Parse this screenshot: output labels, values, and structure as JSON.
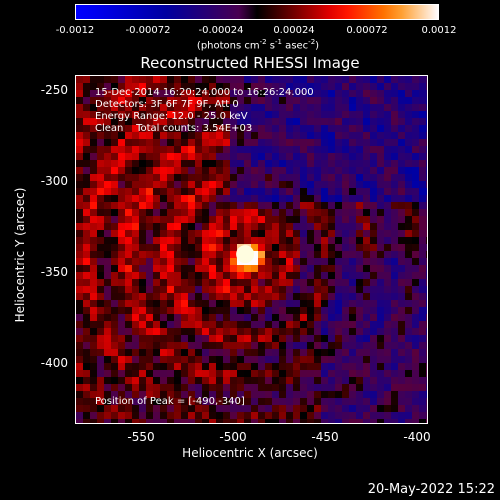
{
  "colorbar": {
    "ticks": [
      "-0.0012",
      "-0.00072",
      "-0.00024",
      "0.00024",
      "0.00072",
      "0.0012"
    ],
    "units_prefix": "(photons cm",
    "units_exp1": "-2",
    "units_mid": " s",
    "units_exp2": "-1",
    "units_mid2": " asec",
    "units_exp3": "-2",
    "units_suffix": ")"
  },
  "title": "Reconstructed RHESSI Image",
  "annotations": {
    "time_range": "15-Dec-2014 16:20:24.000 to 16:26:24.000",
    "detectors": "Detectors: 3F 6F 7F 9F, Att 0",
    "energy": "Energy Range: 12.0 - 25.0 keV",
    "method": "Clean    Total counts: 3.54E+03",
    "peak": "Position of Peak = [-490,-340]"
  },
  "axes": {
    "x_label": "Heliocentric X (arcsec)",
    "y_label": "Heliocentric Y (arcsec)",
    "x_ticks": [
      "-550",
      "-500",
      "-450",
      "-400"
    ],
    "y_ticks": [
      "-250",
      "-300",
      "-350",
      "-400"
    ],
    "x_range": [
      -582,
      -390
    ],
    "y_range": [
      -433,
      -243
    ]
  },
  "image": {
    "peak_x": -490,
    "peak_y": -340
  },
  "footer": "20-May-2022 15:22"
}
